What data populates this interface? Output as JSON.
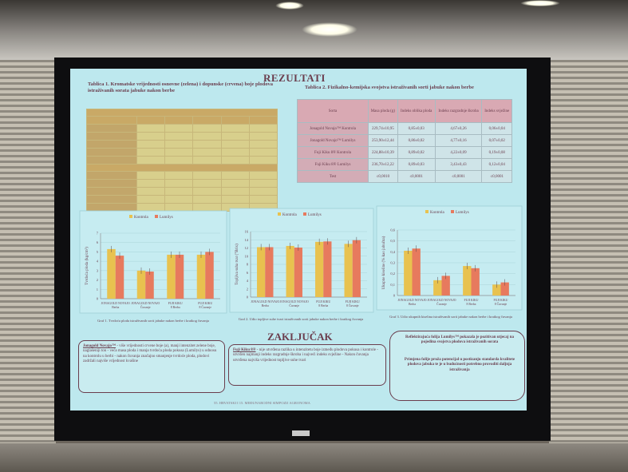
{
  "slide": {
    "section_results": "REZULTATI",
    "table1_title": "Tablica 1. Kromatske vrijednosti osnovne (zelena) i dopunske (crvena) boje plodova istraživanih sorata jabuke nakon berbe",
    "table2_title": "Tablica 2. Fizikalno-kemijska svojstva istraživanih sorti jabuke nakon berbe",
    "table2_headers": [
      "Sorta",
      "Masa ploda (g)",
      "Indeks oblika ploda",
      "Indeks razgradnje škroba",
      "Indeks svježine"
    ],
    "table2_rows": [
      {
        "label": "Jonagold Novajo™ Kontrola",
        "cells": [
          "229,74±10,95",
          "0,85±0,03",
          "4,67±0,26",
          "0,06±0,04"
        ]
      },
      {
        "label": "Jonagold Novajo™ Lumilys",
        "cells": [
          "253,90±12,44",
          "0,86±0,02",
          "4,77±0,16",
          "0,07±0,02"
        ]
      },
      {
        "label": "Fuji Kiku 8® Kontrola",
        "cells": [
          "224,88±10,39",
          "0,89±0,02",
          "4,22±0,09",
          "0,19±0,08"
        ]
      },
      {
        "label": "Fuji Kiku 8® Lumilys",
        "cells": [
          "236,70±12,22",
          "0,89±0,03",
          "3,43±0,43",
          "0,12±0,04"
        ]
      },
      {
        "label": "Test",
        "cells": [
          "≤0,0010",
          "≤0,0001",
          "≤0,0001",
          "≤0,0001"
        ]
      }
    ],
    "legend_control": "Kontrola",
    "legend_lumilys": "Lumilys",
    "chart1_ylabel": "Tvrdoća ploda (kg/cm²)",
    "chart2_ylabel": "Topljiva suha tvar (°Brix)",
    "chart3_ylabel": "Ukupne kiseline (% kao jabučna)",
    "categories": [
      "JONAGOLD NOVAJO Berba",
      "JONAGOLD NOVAJO Čuvanje",
      "FUJI KIKU 8 Berba",
      "FUJI KIKU 8 Čuvanje"
    ],
    "chart1_caption": "Graf 1. Tvrdoća ploda istraživanih sorti jabuke nakon berbe i kratkog čuvanja",
    "chart2_caption": "Graf 2. Udio topljive suhe tvari istraživanih sorti jabuke nakon berbe i kratkog čuvanja",
    "chart3_caption": "Graf 3. Udio ukupnih kiselina istraživanih sorti jabuke nakon berbe i kratkog čuvanja",
    "section_conclusion": "ZAKLJUČAK",
    "concl1_head": "Jonagold Novajo™",
    "concl1_text": "- više vrijednosti crvene boje (a), manji intenzitet zelene boje, naglašeniji ton - veća masa ploda i manja tvrdoća ploda pokusa (Lumilys) u odnosu na kontrolu u berbi - nakon čuvanja značajno smanjenje tvrdoće ploda, plodovi zadržali najviše vrijednost kvašine",
    "concl2_head": "Fuji Kiku 8®",
    "concl2_text": "- nije utvrđena razlika u intenzitetu boje između plodova pokusa i kontrole - utvrđen najmanji indeks razgradnje škroba i najveći indeks svježine - Nakon čuvanja utvrđena najviša vrijednost topljive suhe tvari",
    "concl3_bullet1": "Reflektirajuća folija Lumilys™ pokazala je pozitivan utjecaj na pojedina svojstva plodova istraživanih sorata",
    "concl3_bullet2": "Primjena folije pruža potencijal u postizanju standarda kvalitete plodova jabuka te je u budućnosti potrebno provoditi daljnja istraživanja",
    "footer": "55. HRVATSKI I 15. MEĐUNARODNI SIMPOZIJ AGRONOMA"
  },
  "colors": {
    "screen": "#bde8ee",
    "text": "#6a3d4d",
    "bar_control": "#e8c24f",
    "bar_lumilys": "#e77a5e",
    "table1_fill": "#d8cf8c",
    "table2_header": "#d9a9b3"
  },
  "chart_data": [
    {
      "type": "bar",
      "categories": [
        "JONAGOLD NOVAJO Berba",
        "JONAGOLD NOVAJO Čuvanje",
        "FUJI KIKU 8 Berba",
        "FUJI KIKU 8 Čuvanje"
      ],
      "series": [
        {
          "name": "Kontrola",
          "values": [
            5.3,
            3.0,
            4.7,
            4.7
          ]
        },
        {
          "name": "Lumilys",
          "values": [
            4.6,
            2.9,
            4.7,
            5.0
          ]
        }
      ],
      "ylabel": "Tvrdoća ploda (kg/cm²)",
      "yticks": [
        "0",
        "1",
        "2",
        "3",
        "4",
        "5",
        "6",
        "7"
      ],
      "ylim": [
        0,
        7
      ]
    },
    {
      "type": "bar",
      "categories": [
        "JONAGOLD NOVAJO Berba",
        "JONAGOLD NOVAJO Čuvanje",
        "FUJI KIKU 8 Berba",
        "FUJI KIKU 8 Čuvanje"
      ],
      "series": [
        {
          "name": "Kontrola",
          "values": [
            12.2,
            12.5,
            13.5,
            13.0
          ]
        },
        {
          "name": "Lumilys",
          "values": [
            12.2,
            12.1,
            13.6,
            13.9
          ]
        }
      ],
      "ylabel": "Topljiva suha tvar (°Brix)",
      "yticks": [
        "0",
        "2",
        "4",
        "6",
        "8",
        "10",
        "12",
        "14",
        "16"
      ],
      "ylim": [
        0,
        16
      ]
    },
    {
      "type": "bar",
      "categories": [
        "JONAGOLD NOVAJO Berba",
        "JONAGOLD NOVAJO Čuvanje",
        "FUJI KIKU 8 Berba",
        "FUJI KIKU 8 Čuvanje"
      ],
      "series": [
        {
          "name": "Kontrola",
          "values": [
            0.41,
            0.14,
            0.27,
            0.1
          ]
        },
        {
          "name": "Lumilys",
          "values": [
            0.43,
            0.18,
            0.25,
            0.12
          ]
        }
      ],
      "ylabel": "Ukupne kiseline (% kao jabučna)",
      "yticks": [
        "0",
        "0,1",
        "0,2",
        "0,3",
        "0,4",
        "0,5",
        "0,6"
      ],
      "ylim": [
        0,
        0.6
      ]
    }
  ]
}
